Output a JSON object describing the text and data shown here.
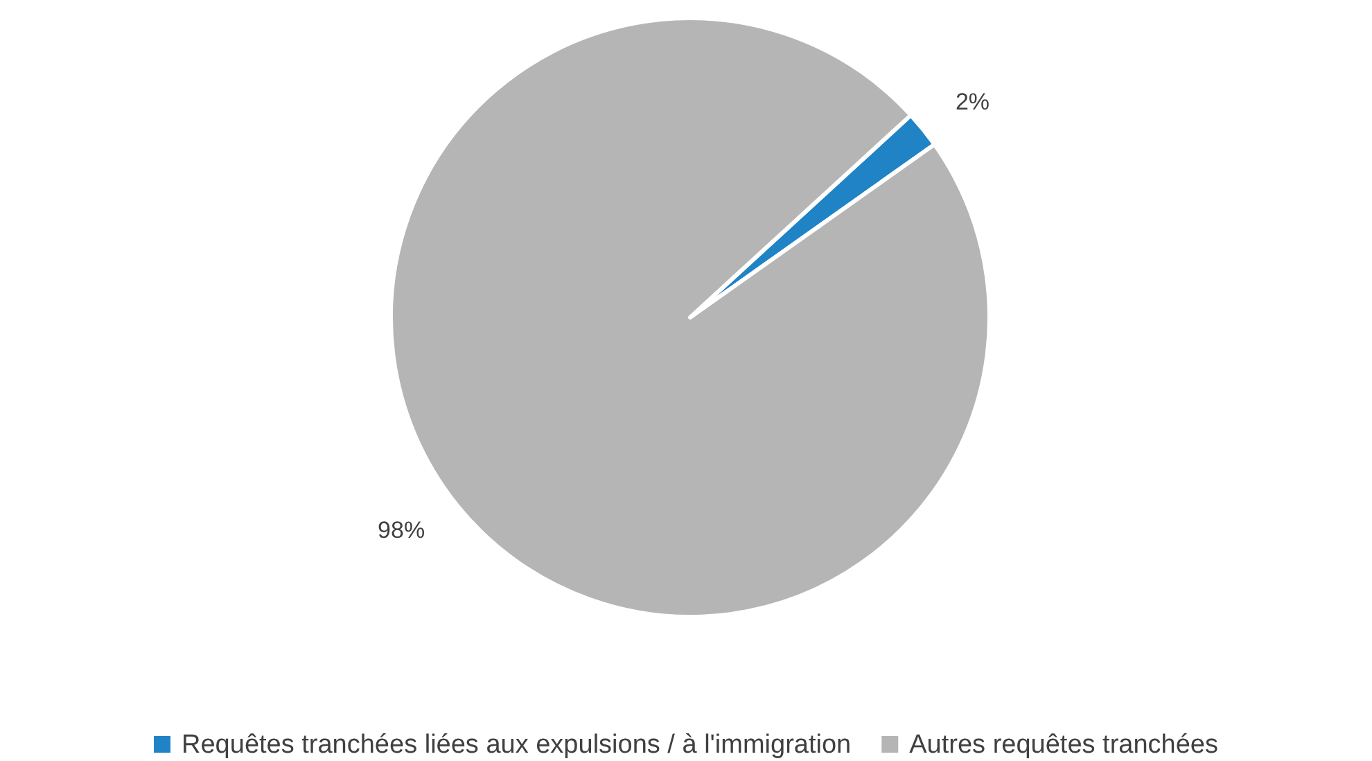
{
  "chart_data": {
    "type": "pie",
    "categories": [
      "Requêtes tranchées liées aux expulsions / à l'immigration",
      "Autres requêtes tranchées"
    ],
    "values": [
      2,
      98
    ],
    "colors": [
      "#1f83c5",
      "#b5b5b5"
    ],
    "value_labels": [
      "2%",
      "98%"
    ],
    "legend": "bottom"
  }
}
